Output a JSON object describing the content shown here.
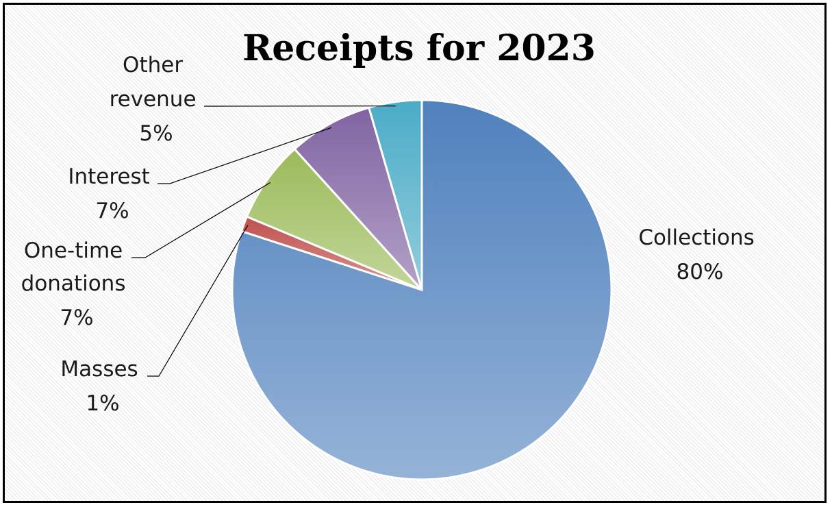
{
  "chart_data": {
    "type": "pie",
    "title": "Receipts for 2023",
    "slices": [
      {
        "label": "Collections",
        "percent_label": "80%",
        "value": 80,
        "color": "#4f81bd",
        "color_light": "#95b3d7"
      },
      {
        "label": "Masses",
        "percent_label": "1%",
        "value": 1.3,
        "color": "#c0504d",
        "color_light": "#d99694"
      },
      {
        "label": "One-time donations",
        "percent_label": "7%",
        "value": 7,
        "color": "#9bbb59",
        "color_light": "#c3d69b"
      },
      {
        "label": "Interest",
        "percent_label": "7%",
        "value": 7.2,
        "color": "#8064a2",
        "color_light": "#b3a2c7"
      },
      {
        "label": "Other revenue",
        "percent_label": "5%",
        "value": 4.5,
        "color": "#4bacc6",
        "color_light": "#92cddc"
      }
    ],
    "start_angle_deg": 0,
    "direction": "clockwise",
    "legend": "none",
    "data_labels": "outside-with-leader-lines"
  }
}
